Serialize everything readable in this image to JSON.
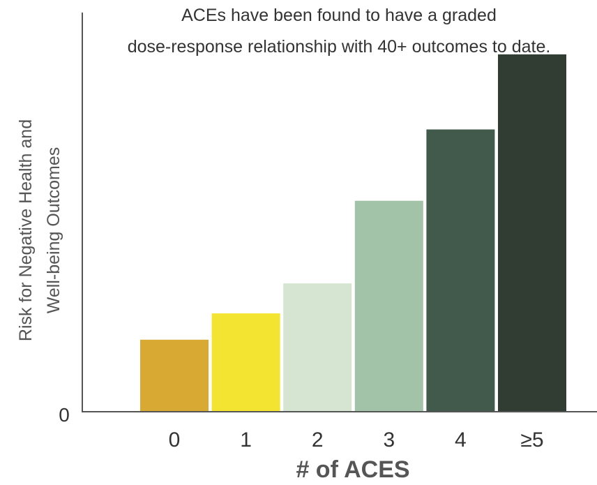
{
  "chart_data": {
    "type": "bar",
    "title_lines": [
      "ACEs have been found to have a graded",
      "dose-response relationship with 40+ outcomes to date."
    ],
    "ylabel_lines": [
      "Risk for Negative Health and",
      "Well-being Outcomes"
    ],
    "xlabel": "# of ACES",
    "y_tick_labels": [
      "0"
    ],
    "categories": [
      "0",
      "1",
      "2",
      "3",
      "4",
      "≥5"
    ],
    "values": [
      19,
      26,
      34,
      56,
      75,
      95
    ],
    "ylim": [
      0,
      100
    ],
    "colors": [
      "#d8a933",
      "#f2e430",
      "#d6e5d2",
      "#a3c3a8",
      "#425a4c",
      "#313c33"
    ],
    "grid": false,
    "legend": "none"
  }
}
